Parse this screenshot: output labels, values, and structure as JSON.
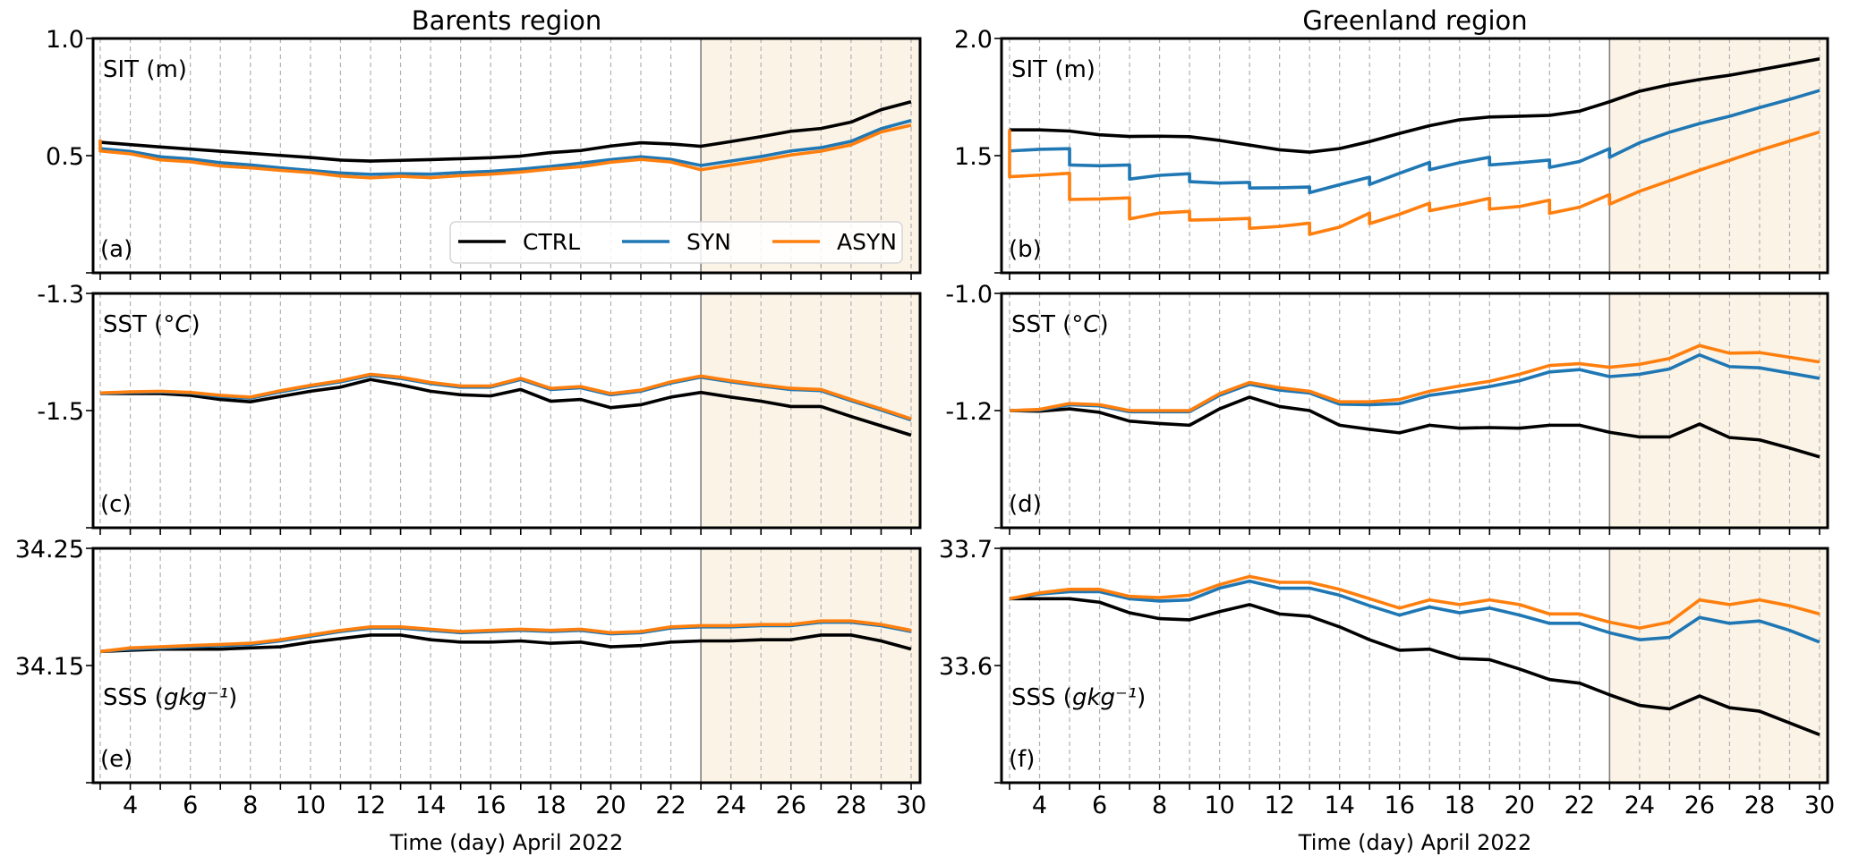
{
  "figure": {
    "column_titles": [
      "Barents region",
      "Greenland region"
    ],
    "xlabel": "Time (day) April 2022",
    "legend": {
      "placement": "lower-right of panel (a)",
      "entries": [
        {
          "name": "CTRL",
          "color": "#000000"
        },
        {
          "name": "SYN",
          "color": "#1f77b4"
        },
        {
          "name": "ASYN",
          "color": "#ff7f0e"
        }
      ]
    },
    "forecast_shading": {
      "start_day": 23,
      "end_day": 30,
      "color": "#fbf3e6",
      "divider_color": "#808080"
    }
  },
  "chart_data": [
    {
      "type": "line",
      "panel": "(a)",
      "region": "Barents region",
      "label_main": "SIT (m)",
      "xlim": [
        3,
        30
      ],
      "x": [
        3,
        4,
        5,
        6,
        7,
        8,
        9,
        10,
        11,
        12,
        13,
        14,
        15,
        16,
        17,
        18,
        19,
        20,
        21,
        22,
        23,
        24,
        25,
        26,
        27,
        28,
        29,
        30
      ],
      "xticks": [
        4,
        6,
        8,
        10,
        12,
        14,
        16,
        18,
        20,
        22,
        24,
        26,
        28,
        30
      ],
      "ylim": [
        0.0,
        1.0
      ],
      "yticks": [
        0.5,
        1.0
      ],
      "ytick_labels": [
        "0.5",
        "1.0"
      ],
      "grid": "vertical dashed every day",
      "series": [
        {
          "name": "CTRL",
          "values": [
            0.557,
            0.547,
            0.537,
            0.528,
            0.519,
            0.51,
            0.501,
            0.492,
            0.481,
            0.477,
            0.48,
            0.483,
            0.487,
            0.491,
            0.498,
            0.513,
            0.522,
            0.541,
            0.555,
            0.55,
            0.54,
            0.56,
            0.581,
            0.604,
            0.616,
            0.643,
            0.696,
            0.73
          ]
        },
        {
          "name": "SYN",
          "values": [
            0.53,
            0.518,
            0.495,
            0.486,
            0.47,
            0.46,
            0.448,
            0.437,
            0.426,
            0.42,
            0.423,
            0.421,
            0.428,
            0.433,
            0.442,
            0.454,
            0.468,
            0.483,
            0.495,
            0.484,
            0.458,
            0.477,
            0.496,
            0.52,
            0.534,
            0.561,
            0.615,
            0.65
          ]
        },
        {
          "name": "ASYN",
          "values": [
            0.52,
            0.508,
            0.482,
            0.474,
            0.456,
            0.448,
            0.437,
            0.428,
            0.413,
            0.405,
            0.412,
            0.406,
            0.415,
            0.421,
            0.43,
            0.443,
            0.453,
            0.472,
            0.484,
            0.473,
            0.44,
            0.46,
            0.48,
            0.503,
            0.519,
            0.546,
            0.601,
            0.63
          ]
        }
      ],
      "spike_start": {
        "ASYN": 0.568
      }
    },
    {
      "type": "line",
      "panel": "(b)",
      "region": "Greenland region",
      "label_main": "SIT (m)",
      "xlim": [
        3,
        30
      ],
      "x": [
        3,
        4,
        5,
        6,
        7,
        8,
        9,
        10,
        11,
        12,
        13,
        14,
        15,
        16,
        17,
        18,
        19,
        20,
        21,
        22,
        23,
        24,
        25,
        26,
        27,
        28,
        29,
        30
      ],
      "xticks": [
        4,
        6,
        8,
        10,
        12,
        14,
        16,
        18,
        20,
        22,
        24,
        26,
        28,
        30
      ],
      "ylim": [
        1.0,
        2.0
      ],
      "yticks": [
        1.5,
        2.0
      ],
      "ytick_labels": [
        "1.5",
        "2.0"
      ],
      "grid": "vertical dashed every day",
      "series": [
        {
          "name": "CTRL",
          "values": [
            1.61,
            1.61,
            1.605,
            1.589,
            1.582,
            1.583,
            1.581,
            1.565,
            1.545,
            1.525,
            1.515,
            1.53,
            1.56,
            1.595,
            1.628,
            1.653,
            1.665,
            1.668,
            1.672,
            1.69,
            1.73,
            1.775,
            1.803,
            1.825,
            1.843,
            1.866,
            1.889,
            1.913
          ]
        },
        {
          "name": "SYN",
          "values": [
            1.52,
            1.527,
            1.46,
            1.457,
            1.4,
            1.416,
            1.389,
            1.383,
            1.362,
            1.363,
            1.342,
            1.376,
            1.377,
            1.425,
            1.44,
            1.47,
            1.46,
            1.47,
            1.45,
            1.475,
            1.493,
            1.555,
            1.6,
            1.637,
            1.668,
            1.705,
            1.74,
            1.778
          ]
        },
        {
          "name": "ASYN",
          "values": [
            1.41,
            1.417,
            1.313,
            1.315,
            1.23,
            1.255,
            1.225,
            1.228,
            1.19,
            1.198,
            1.164,
            1.195,
            1.21,
            1.25,
            1.265,
            1.29,
            1.272,
            1.283,
            1.254,
            1.28,
            1.293,
            1.348,
            1.393,
            1.438,
            1.48,
            1.523,
            1.562,
            1.601
          ]
        }
      ],
      "step_drops": {
        "note": "SYN and ASYN show daily step discontinuities (pre-drop values at odd days 5..23)",
        "SYN_pre_drop": {
          "5": 1.53,
          "7": 1.46,
          "9": 1.423,
          "11": 1.386,
          "13": 1.366,
          "15": 1.408,
          "17": 1.471,
          "19": 1.493,
          "21": 1.481,
          "23": 1.53
        },
        "ASYN_pre_drop": {
          "3": 1.612,
          "5": 1.425,
          "7": 1.32,
          "9": 1.262,
          "11": 1.232,
          "13": 1.212,
          "15": 1.255,
          "17": 1.297,
          "19": 1.318,
          "21": 1.31,
          "23": 1.334
        }
      }
    },
    {
      "type": "line",
      "panel": "(c)",
      "region": "Barents region",
      "label_main": "SST",
      "label_unit": "°C",
      "xlim": [
        3,
        30
      ],
      "x": [
        3,
        4,
        5,
        6,
        7,
        8,
        9,
        10,
        11,
        12,
        13,
        14,
        15,
        16,
        17,
        18,
        19,
        20,
        21,
        22,
        23,
        24,
        25,
        26,
        27,
        28,
        29,
        30
      ],
      "xticks": [
        4,
        6,
        8,
        10,
        12,
        14,
        16,
        18,
        20,
        22,
        24,
        26,
        28,
        30
      ],
      "ylim": [
        -1.7,
        -1.3
      ],
      "yticks": [
        -1.5,
        -1.3
      ],
      "ytick_labels": [
        "-1.5",
        "-1.3"
      ],
      "grid": "vertical dashed every day",
      "series": [
        {
          "name": "CTRL",
          "values": [
            -1.471,
            -1.471,
            -1.471,
            -1.474,
            -1.481,
            -1.485,
            -1.476,
            -1.467,
            -1.46,
            -1.447,
            -1.456,
            -1.467,
            -1.473,
            -1.475,
            -1.464,
            -1.484,
            -1.481,
            -1.495,
            -1.49,
            -1.477,
            -1.469,
            -1.477,
            -1.484,
            -1.493,
            -1.493,
            -1.51,
            -1.526,
            -1.542
          ]
        },
        {
          "name": "SYN",
          "values": [
            -1.471,
            -1.469,
            -1.468,
            -1.47,
            -1.476,
            -1.479,
            -1.468,
            -1.459,
            -1.451,
            -1.44,
            -1.445,
            -1.454,
            -1.46,
            -1.46,
            -1.447,
            -1.464,
            -1.461,
            -1.473,
            -1.467,
            -1.453,
            -1.443,
            -1.451,
            -1.458,
            -1.464,
            -1.466,
            -1.483,
            -1.499,
            -1.516
          ]
        },
        {
          "name": "ASYN",
          "values": [
            -1.47,
            -1.468,
            -1.467,
            -1.469,
            -1.474,
            -1.477,
            -1.466,
            -1.457,
            -1.449,
            -1.438,
            -1.443,
            -1.452,
            -1.458,
            -1.458,
            -1.445,
            -1.462,
            -1.459,
            -1.471,
            -1.465,
            -1.451,
            -1.441,
            -1.449,
            -1.456,
            -1.462,
            -1.464,
            -1.481,
            -1.497,
            -1.514
          ]
        }
      ]
    },
    {
      "type": "line",
      "panel": "(d)",
      "region": "Greenland region",
      "label_main": "SST",
      "label_unit": "°C",
      "xlim": [
        3,
        30
      ],
      "x": [
        3,
        4,
        5,
        6,
        7,
        8,
        9,
        10,
        11,
        12,
        13,
        14,
        15,
        16,
        17,
        18,
        19,
        20,
        21,
        22,
        23,
        24,
        25,
        26,
        27,
        28,
        29,
        30
      ],
      "xticks": [
        4,
        6,
        8,
        10,
        12,
        14,
        16,
        18,
        20,
        22,
        24,
        26,
        28,
        30
      ],
      "ylim": [
        -1.4,
        -1.0
      ],
      "yticks": [
        -1.2,
        -1.0
      ],
      "ytick_labels": [
        "-1.2",
        "-1.0"
      ],
      "grid": "vertical dashed every day",
      "series": [
        {
          "name": "CTRL",
          "values": [
            -1.2,
            -1.201,
            -1.197,
            -1.203,
            -1.218,
            -1.222,
            -1.225,
            -1.197,
            -1.177,
            -1.193,
            -1.2,
            -1.225,
            -1.232,
            -1.238,
            -1.225,
            -1.23,
            -1.229,
            -1.23,
            -1.225,
            -1.225,
            -1.237,
            -1.245,
            -1.245,
            -1.223,
            -1.246,
            -1.25,
            -1.264,
            -1.279
          ]
        },
        {
          "name": "SYN",
          "values": [
            -1.2,
            -1.199,
            -1.19,
            -1.192,
            -1.202,
            -1.202,
            -1.202,
            -1.174,
            -1.155,
            -1.165,
            -1.17,
            -1.189,
            -1.19,
            -1.188,
            -1.174,
            -1.167,
            -1.159,
            -1.149,
            -1.134,
            -1.13,
            -1.142,
            -1.138,
            -1.129,
            -1.105,
            -1.125,
            -1.127,
            -1.136,
            -1.145
          ]
        },
        {
          "name": "ASYN",
          "values": [
            -1.2,
            -1.198,
            -1.188,
            -1.19,
            -1.2,
            -1.2,
            -1.2,
            -1.171,
            -1.152,
            -1.161,
            -1.167,
            -1.185,
            -1.185,
            -1.181,
            -1.167,
            -1.158,
            -1.15,
            -1.138,
            -1.123,
            -1.12,
            -1.126,
            -1.121,
            -1.111,
            -1.089,
            -1.102,
            -1.101,
            -1.109,
            -1.117
          ]
        }
      ]
    },
    {
      "type": "line",
      "panel": "(e)",
      "region": "Barents region",
      "label_main": "SSS",
      "label_unit": "gkg⁻¹",
      "xlim": [
        3,
        30
      ],
      "x": [
        3,
        4,
        5,
        6,
        7,
        8,
        9,
        10,
        11,
        12,
        13,
        14,
        15,
        16,
        17,
        18,
        19,
        20,
        21,
        22,
        23,
        24,
        25,
        26,
        27,
        28,
        29,
        30
      ],
      "xticks": [
        4,
        6,
        8,
        10,
        12,
        14,
        16,
        18,
        20,
        22,
        24,
        26,
        28,
        30
      ],
      "xtick_labels": [
        "4",
        "6",
        "8",
        "10",
        "12",
        "14",
        "16",
        "18",
        "20",
        "22",
        "24",
        "26",
        "28",
        "30"
      ],
      "ylim": [
        34.05,
        34.25
      ],
      "yticks": [
        34.15,
        34.25
      ],
      "ytick_labels": [
        "34.15",
        "34.25"
      ],
      "grid": "vertical dashed every day",
      "series": [
        {
          "name": "CTRL",
          "values": [
            34.162,
            34.163,
            34.164,
            34.164,
            34.164,
            34.165,
            34.166,
            34.17,
            34.173,
            34.176,
            34.176,
            34.172,
            34.17,
            34.17,
            34.171,
            34.169,
            34.17,
            34.166,
            34.167,
            34.17,
            34.171,
            34.171,
            34.172,
            34.172,
            34.176,
            34.176,
            34.171,
            34.164
          ]
        },
        {
          "name": "SYN",
          "values": [
            34.162,
            34.164,
            34.165,
            34.166,
            34.167,
            34.168,
            34.171,
            34.175,
            34.179,
            34.182,
            34.182,
            34.18,
            34.178,
            34.179,
            34.18,
            34.179,
            34.18,
            34.177,
            34.178,
            34.182,
            34.183,
            34.183,
            34.184,
            34.184,
            34.187,
            34.187,
            34.184,
            34.179
          ]
        },
        {
          "name": "ASYN",
          "values": [
            34.162,
            34.165,
            34.166,
            34.167,
            34.168,
            34.169,
            34.172,
            34.176,
            34.18,
            34.183,
            34.183,
            34.181,
            34.179,
            34.18,
            34.181,
            34.18,
            34.181,
            34.178,
            34.179,
            34.183,
            34.184,
            34.184,
            34.185,
            34.185,
            34.188,
            34.188,
            34.185,
            34.18
          ]
        }
      ]
    },
    {
      "type": "line",
      "panel": "(f)",
      "region": "Greenland region",
      "label_main": "SSS",
      "label_unit": "gkg⁻¹",
      "xlim": [
        3,
        30
      ],
      "x": [
        3,
        4,
        5,
        6,
        7,
        8,
        9,
        10,
        11,
        12,
        13,
        14,
        15,
        16,
        17,
        18,
        19,
        20,
        21,
        22,
        23,
        24,
        25,
        26,
        27,
        28,
        29,
        30
      ],
      "xticks": [
        4,
        6,
        8,
        10,
        12,
        14,
        16,
        18,
        20,
        22,
        24,
        26,
        28,
        30
      ],
      "xtick_labels": [
        "4",
        "6",
        "8",
        "10",
        "12",
        "14",
        "16",
        "18",
        "20",
        "22",
        "24",
        "26",
        "28",
        "30"
      ],
      "ylim": [
        33.5,
        33.7
      ],
      "yticks": [
        33.6,
        33.7
      ],
      "ytick_labels": [
        "33.6",
        "33.7"
      ],
      "grid": "vertical dashed every day",
      "series": [
        {
          "name": "CTRL",
          "values": [
            33.657,
            33.657,
            33.657,
            33.654,
            33.645,
            33.64,
            33.639,
            33.646,
            33.652,
            33.644,
            33.642,
            33.633,
            33.622,
            33.613,
            33.614,
            33.606,
            33.605,
            33.597,
            33.588,
            33.585,
            33.575,
            33.566,
            33.563,
            33.574,
            33.564,
            33.561,
            33.551,
            33.541
          ]
        },
        {
          "name": "SYN",
          "values": [
            33.657,
            33.661,
            33.663,
            33.663,
            33.657,
            33.655,
            33.656,
            33.666,
            33.672,
            33.666,
            33.666,
            33.66,
            33.651,
            33.643,
            33.65,
            33.645,
            33.649,
            33.643,
            33.636,
            33.636,
            33.628,
            33.622,
            33.624,
            33.641,
            33.636,
            33.638,
            33.63,
            33.62
          ]
        },
        {
          "name": "ASYN",
          "values": [
            33.657,
            33.662,
            33.665,
            33.665,
            33.659,
            33.658,
            33.66,
            33.669,
            33.676,
            33.671,
            33.671,
            33.665,
            33.657,
            33.649,
            33.656,
            33.652,
            33.656,
            33.652,
            33.644,
            33.644,
            33.637,
            33.632,
            33.637,
            33.656,
            33.652,
            33.656,
            33.651,
            33.644
          ]
        }
      ]
    }
  ]
}
